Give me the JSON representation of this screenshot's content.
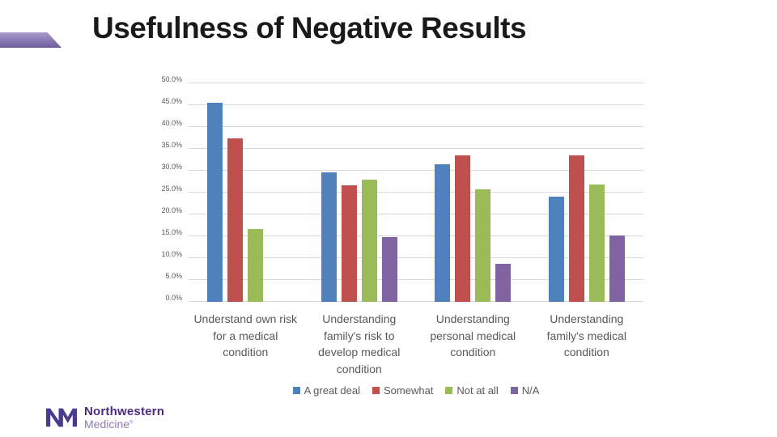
{
  "slide": {
    "title": "Usefulness of Negative Results"
  },
  "logo": {
    "monogram": "NM",
    "name_top": "Northwestern",
    "name_bottom": "Medicine",
    "trademark": "®",
    "purple_dark": "#4e2a84",
    "purple_light": "#8c7cb5"
  },
  "chart_data": {
    "type": "bar",
    "title": "Usefulness of Negative Results",
    "categories": [
      "Understand own risk for a medical condition",
      "Understanding family's risk to develop medical condition",
      "Understanding personal medical condition",
      "Understanding family's medical condition"
    ],
    "series": [
      {
        "name": "A great deal",
        "color": "#4f81bd",
        "values": [
          45.5,
          29.7,
          31.4,
          24.0
        ]
      },
      {
        "name": "Somewhat",
        "color": "#c0504d",
        "values": [
          37.5,
          26.7,
          33.6,
          33.6
        ]
      },
      {
        "name": "Not at all",
        "color": "#9bbb59",
        "values": [
          16.7,
          27.9,
          25.7,
          26.9
        ]
      },
      {
        "name": "N/A",
        "color": "#8064a2",
        "values": [
          0,
          14.9,
          8.7,
          15.1
        ]
      }
    ],
    "ylabel": "",
    "xlabel": "",
    "ylim": [
      0,
      50
    ],
    "ytick_step": 5,
    "ytick_labels": [
      "0.0%",
      "5.0%",
      "10.0%",
      "15.0%",
      "20.0%",
      "25.0%",
      "30.0%",
      "35.0%",
      "40.0%",
      "45.0%",
      "50.0%"
    ],
    "grid": true,
    "gridline_color": "#d8d8d8",
    "legend_position": "bottom"
  }
}
